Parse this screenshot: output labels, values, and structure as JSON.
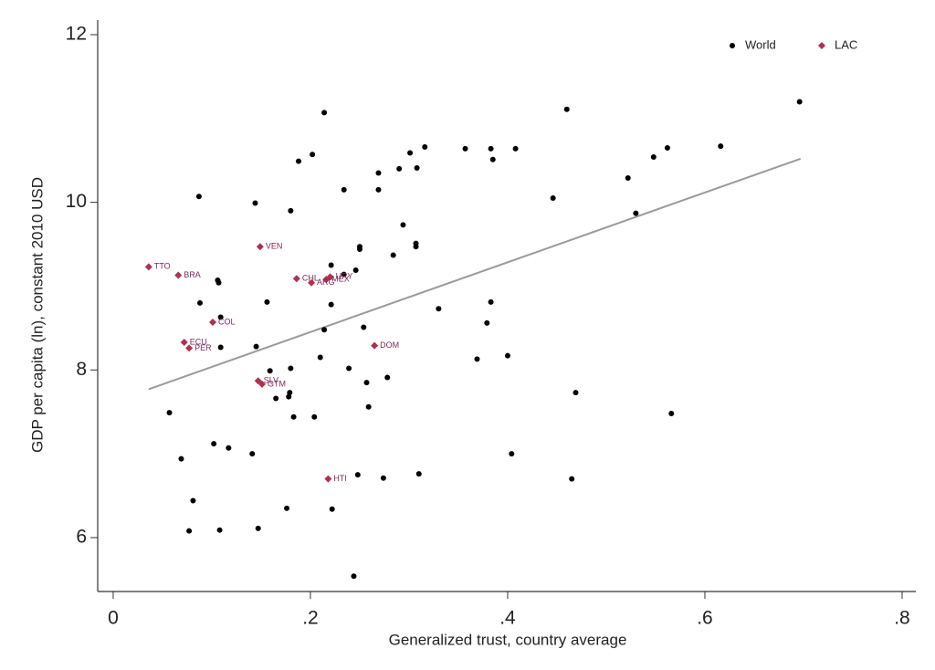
{
  "chart_data": {
    "type": "scatter",
    "x_label": "Generalized trust, country average",
    "y_label": "GDP per capita (ln), constant 2010 USD",
    "xlim": [
      -0.0157,
      0.8139
    ],
    "ylim": [
      5.357,
      12.174
    ],
    "xticks": [
      0,
      {
        "value": 0.2,
        "label": ".2"
      },
      {
        "value": 0.4,
        "label": ".4"
      },
      {
        "value": 0.6,
        "label": ".6"
      },
      {
        "value": 0.8,
        "label": ".8"
      }
    ],
    "yticks": [
      6,
      8,
      10,
      12
    ],
    "grid": false,
    "legend": "top-right",
    "series": [
      {
        "name": "World",
        "color": "#000000",
        "x": [
          0.696,
          0.46,
          0.214,
          0.316,
          0.301,
          0.357,
          0.383,
          0.408,
          0.202,
          0.188,
          0.385,
          0.269,
          0.29,
          0.308,
          0.522,
          0.562,
          0.548,
          0.616,
          0.087,
          0.144,
          0.18,
          0.234,
          0.269,
          0.446,
          0.53,
          0.294,
          0.25,
          0.25,
          0.221,
          0.284,
          0.307,
          0.307,
          0.246,
          0.234,
          0.106,
          0.107,
          0.088,
          0.156,
          0.221,
          0.33,
          0.383,
          0.109,
          0.254,
          0.214,
          0.379,
          0.145,
          0.109,
          0.21,
          0.239,
          0.18,
          0.159,
          0.257,
          0.278,
          0.4,
          0.369,
          0.469,
          0.179,
          0.178,
          0.165,
          0.259,
          0.183,
          0.204,
          0.057,
          0.566,
          0.102,
          0.117,
          0.141,
          0.069,
          0.404,
          0.248,
          0.274,
          0.31,
          0.465,
          0.081,
          0.176,
          0.222,
          0.077,
          0.108,
          0.147,
          0.244
        ],
        "values": [
          11.2,
          11.11,
          11.07,
          10.66,
          10.59,
          10.64,
          10.64,
          10.64,
          10.57,
          10.49,
          10.51,
          10.35,
          10.4,
          10.41,
          10.29,
          10.65,
          10.54,
          10.67,
          10.07,
          9.99,
          9.9,
          10.15,
          10.15,
          10.05,
          9.87,
          9.73,
          9.47,
          9.44,
          9.25,
          9.37,
          9.51,
          9.47,
          9.19,
          9.14,
          9.07,
          9.04,
          8.8,
          8.81,
          8.78,
          8.73,
          8.81,
          8.63,
          8.51,
          8.48,
          8.56,
          8.28,
          8.27,
          8.15,
          8.02,
          8.02,
          7.99,
          7.85,
          7.91,
          8.17,
          8.13,
          7.73,
          7.73,
          7.68,
          7.66,
          7.56,
          7.44,
          7.44,
          7.49,
          7.48,
          7.12,
          7.07,
          7.0,
          6.94,
          7.0,
          6.75,
          6.71,
          6.76,
          6.7,
          6.44,
          6.35,
          6.34,
          6.08,
          6.09,
          6.11,
          5.54
        ]
      },
      {
        "name": "LAC",
        "color": "#b0304e",
        "x": [
          0.036,
          0.066,
          0.149,
          0.186,
          0.22,
          0.216,
          0.201,
          0.101,
          0.072,
          0.077,
          0.265,
          0.147,
          0.151,
          0.218
        ],
        "values": [
          9.23,
          9.13,
          9.47,
          9.09,
          9.11,
          9.08,
          9.04,
          8.57,
          8.33,
          8.26,
          8.29,
          7.87,
          7.83,
          6.7
        ],
        "labels": [
          "TTO",
          "BRA",
          "VEN",
          "CHL",
          "URY",
          "MEX",
          "ARG",
          "COL",
          "ECU",
          "PER",
          "DOM",
          "SLV",
          "GTM",
          "HTI"
        ]
      }
    ],
    "fit_line": {
      "color": "#9a9a9a",
      "x": [
        0.036,
        0.697
      ],
      "values": [
        7.77,
        10.52
      ]
    }
  }
}
